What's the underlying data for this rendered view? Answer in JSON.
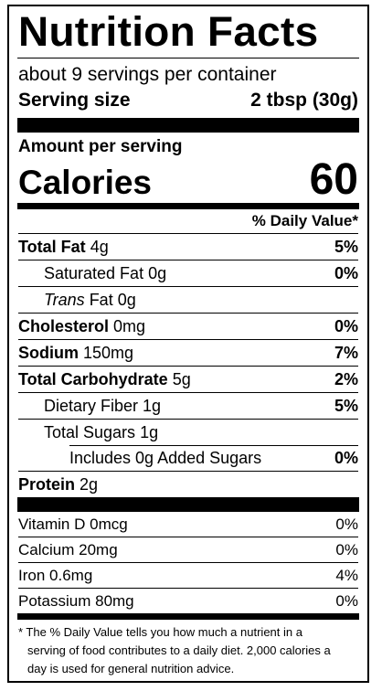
{
  "title": "Nutrition Facts",
  "servings_per_container": "about 9 servings per container",
  "serving_size": {
    "label": "Serving size",
    "value": "2 tbsp (30g)"
  },
  "amount_per_serving": "Amount per serving",
  "calories": {
    "label": "Calories",
    "value": "60"
  },
  "daily_value_header": "% Daily Value*",
  "nutrients": [
    {
      "name": "Total Fat",
      "amount": "4g",
      "dv": "5%",
      "bold": true,
      "indent": 0
    },
    {
      "name": "Saturated Fat",
      "amount": "0g",
      "dv": "0%",
      "bold": false,
      "indent": 1
    },
    {
      "name": "Trans",
      "name_suffix": " Fat",
      "amount": "0g",
      "dv": "",
      "bold": false,
      "indent": 1,
      "italic_prefix": true
    },
    {
      "name": "Cholesterol",
      "amount": "0mg",
      "dv": "0%",
      "bold": true,
      "indent": 0
    },
    {
      "name": "Sodium",
      "amount": "150mg",
      "dv": "7%",
      "bold": true,
      "indent": 0
    },
    {
      "name": "Total Carbohydrate",
      "amount": "5g",
      "dv": "2%",
      "bold": true,
      "indent": 0
    },
    {
      "name": "Dietary Fiber",
      "amount": "1g",
      "dv": "5%",
      "bold": false,
      "indent": 1
    },
    {
      "name": "Total Sugars",
      "amount": "1g",
      "dv": "",
      "bold": false,
      "indent": 1
    },
    {
      "name": "Includes 0g Added Sugars",
      "amount": "",
      "dv": "0%",
      "bold": false,
      "indent": 2
    },
    {
      "name": "Protein",
      "amount": "2g",
      "dv": "",
      "bold": true,
      "indent": 0
    }
  ],
  "vitamins": [
    {
      "name": "Vitamin D",
      "amount": "0mcg",
      "dv": "0%"
    },
    {
      "name": "Calcium",
      "amount": "20mg",
      "dv": "0%"
    },
    {
      "name": "Iron",
      "amount": "0.6mg",
      "dv": "4%"
    },
    {
      "name": "Potassium",
      "amount": "80mg",
      "dv": "0%"
    }
  ],
  "footnote": {
    "line1": "* The  % Daily Value tells you how much a nutrient in a",
    "line2": "serving of food contributes to a daily diet. 2,000 calories a",
    "line3": "day is used for general nutrition advice."
  }
}
